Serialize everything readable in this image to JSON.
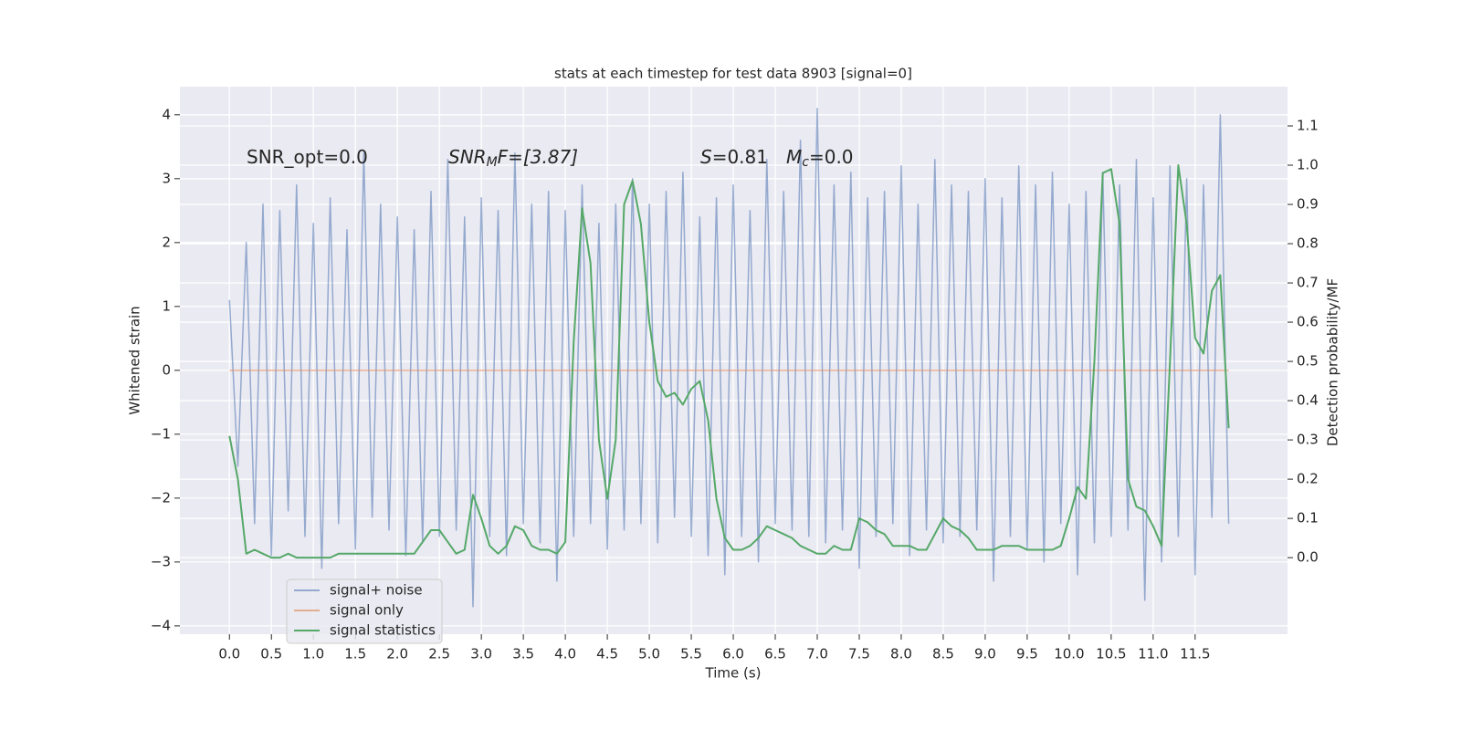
{
  "chart_data": {
    "type": "line",
    "title": "stats at each timestep for test data 8903 [signal=0]",
    "xlabel": "Time (s)",
    "ylabel": "Whitened strain",
    "y2label": "Detection probability/MF",
    "annotations": [
      [
        "SNR_opt=0.0"
      ],
      [
        "SNR",
        "M",
        "F=[3.87]"
      ],
      [
        "S",
        "=0.81",
        "M",
        "c",
        "=0.0"
      ]
    ],
    "grid": true,
    "legend": "lower left",
    "xlim": [
      -0.59,
      12.6
    ],
    "ylim": [
      -4.13,
      4.44
    ],
    "y2lim": [
      -0.195,
      1.2
    ],
    "xticks": [
      {
        "value": 0,
        "label": "0.0"
      },
      {
        "value": 0.5,
        "label": "0.5"
      },
      {
        "value": 1,
        "label": "1.0"
      },
      {
        "value": 1.5,
        "label": "1.5"
      },
      {
        "value": 2,
        "label": "2.0"
      },
      {
        "value": 2.5,
        "label": "2.5"
      },
      {
        "value": 3,
        "label": "3.0"
      },
      {
        "value": 3.5,
        "label": "3.5"
      },
      {
        "value": 4,
        "label": "4.0"
      },
      {
        "value": 4.5,
        "label": "4.5"
      },
      {
        "value": 5,
        "label": "5.0"
      },
      {
        "value": 5.5,
        "label": "5.5"
      },
      {
        "value": 6,
        "label": "6.0"
      },
      {
        "value": 6.5,
        "label": "6.5"
      },
      {
        "value": 7,
        "label": "7.0"
      },
      {
        "value": 7.5,
        "label": "7.5"
      },
      {
        "value": 8,
        "label": "8.0"
      },
      {
        "value": 8.5,
        "label": "8.5"
      },
      {
        "value": 9,
        "label": "9.0"
      },
      {
        "value": 9.5,
        "label": "9.5"
      },
      {
        "value": 10,
        "label": "10.0"
      },
      {
        "value": 10.5,
        "label": "10.5"
      },
      {
        "value": 11,
        "label": "11.0"
      },
      {
        "value": 11.5,
        "label": "11.5"
      }
    ],
    "yticks": [
      {
        "value": -4,
        "label": "−4"
      },
      {
        "value": -3,
        "label": "−3"
      },
      {
        "value": -2,
        "label": "−2"
      },
      {
        "value": -1,
        "label": "−1"
      },
      0,
      1,
      2,
      3,
      4
    ],
    "y2ticks": [
      {
        "value": 0,
        "label": "0.0"
      },
      {
        "value": 0.1,
        "label": "0.1"
      },
      {
        "value": 0.2,
        "label": "0.2"
      },
      {
        "value": 0.3,
        "label": "0.3"
      },
      {
        "value": 0.4,
        "label": "0.4"
      },
      {
        "value": 0.5,
        "label": "0.5"
      },
      {
        "value": 0.6,
        "label": "0.6"
      },
      {
        "value": 0.7,
        "label": "0.7"
      },
      {
        "value": 0.8,
        "label": "0.8"
      },
      {
        "value": 0.9,
        "label": "0.9"
      },
      {
        "value": 1,
        "label": "1.0"
      },
      {
        "value": 1.1,
        "label": "1.1"
      }
    ],
    "x": [
      0.0,
      0.1,
      0.2,
      0.3,
      0.4,
      0.5,
      0.6,
      0.7,
      0.8,
      0.9,
      1.0,
      1.1,
      1.2,
      1.3,
      1.4,
      1.5,
      1.6,
      1.7,
      1.8,
      1.9,
      2.0,
      2.1,
      2.2,
      2.3,
      2.4,
      2.5,
      2.6,
      2.7,
      2.8,
      2.9,
      3.0,
      3.1,
      3.2,
      3.3,
      3.4,
      3.5,
      3.6,
      3.7,
      3.8,
      3.9,
      4.0,
      4.1,
      4.2,
      4.3,
      4.4,
      4.5,
      4.6,
      4.7,
      4.8,
      4.9,
      5.0,
      5.1,
      5.2,
      5.3,
      5.4,
      5.5,
      5.6,
      5.7,
      5.8,
      5.9,
      6.0,
      6.1,
      6.2,
      6.3,
      6.4,
      6.5,
      6.6,
      6.7,
      6.8,
      6.9,
      7.0,
      7.1,
      7.2,
      7.3,
      7.4,
      7.5,
      7.6,
      7.7,
      7.8,
      7.9,
      8.0,
      8.1,
      8.2,
      8.3,
      8.4,
      8.5,
      8.6,
      8.7,
      8.8,
      8.9,
      9.0,
      9.1,
      9.2,
      9.3,
      9.4,
      9.5,
      9.6,
      9.7,
      9.8,
      9.9,
      10.0,
      10.1,
      10.2,
      10.3,
      10.4,
      10.5,
      10.6,
      10.7,
      10.8,
      10.9,
      11.0,
      11.1,
      11.2,
      11.3,
      11.4,
      11.5,
      11.6,
      11.7,
      11.8,
      11.9
    ],
    "series": [
      {
        "name": "signal+ noise",
        "color": "#4c72b0",
        "values": [
          1.1,
          -1.5,
          2.0,
          -2.4,
          2.6,
          -2.9,
          2.5,
          -2.2,
          2.9,
          -2.6,
          2.3,
          -3.1,
          2.7,
          -2.4,
          2.2,
          -2.8,
          3.4,
          -2.3,
          2.6,
          -2.5,
          2.4,
          -2.9,
          2.2,
          -2.7,
          2.8,
          -2.6,
          3.3,
          -2.5,
          2.4,
          -3.7,
          2.7,
          -2.6,
          2.5,
          -2.9,
          3.4,
          -2.4,
          2.6,
          -2.7,
          2.8,
          -3.3,
          2.5,
          -2.6,
          2.9,
          -2.4,
          2.3,
          -2.8,
          2.6,
          -2.5,
          3.0,
          -2.4,
          2.6,
          -2.7,
          2.8,
          -2.3,
          3.1,
          -2.6,
          2.4,
          -2.9,
          2.7,
          -3.2,
          2.9,
          -2.6,
          2.5,
          -3.0,
          3.3,
          -2.4,
          2.8,
          -2.5,
          3.6,
          -2.6,
          4.1,
          -2.7,
          2.9,
          -2.5,
          3.1,
          -3.1,
          2.7,
          -2.6,
          2.8,
          -2.4,
          3.2,
          -2.9,
          2.6,
          -2.5,
          3.3,
          -2.7,
          2.9,
          -2.6,
          2.8,
          -2.5,
          3.0,
          -3.3,
          2.7,
          -2.6,
          3.2,
          -2.8,
          2.9,
          -3.0,
          3.1,
          -2.4,
          2.6,
          -3.2,
          2.8,
          -2.7,
          3.1,
          -2.6,
          2.9,
          -2.5,
          3.3,
          -3.6,
          2.7,
          -3.0,
          3.2,
          -2.6,
          3.0,
          -3.2,
          2.9,
          -2.3,
          4.0,
          -2.4
        ]
      },
      {
        "name": "signal only",
        "color": "#dd8452",
        "values": [
          0,
          0,
          0,
          0,
          0,
          0,
          0,
          0,
          0,
          0,
          0,
          0,
          0,
          0,
          0,
          0,
          0,
          0,
          0,
          0,
          0,
          0,
          0,
          0,
          0,
          0,
          0,
          0,
          0,
          0,
          0,
          0,
          0,
          0,
          0,
          0,
          0,
          0,
          0,
          0,
          0,
          0,
          0,
          0,
          0,
          0,
          0,
          0,
          0,
          0,
          0,
          0,
          0,
          0,
          0,
          0,
          0,
          0,
          0,
          0,
          0,
          0,
          0,
          0,
          0,
          0,
          0,
          0,
          0,
          0,
          0,
          0,
          0,
          0,
          0,
          0,
          0,
          0,
          0,
          0,
          0,
          0,
          0,
          0,
          0,
          0,
          0,
          0,
          0,
          0,
          0,
          0,
          0,
          0,
          0,
          0,
          0,
          0,
          0,
          0,
          0,
          0,
          0,
          0,
          0,
          0,
          0,
          0,
          0,
          0,
          0,
          0,
          0,
          0,
          0,
          0,
          0,
          0,
          0,
          0
        ]
      },
      {
        "name": "signal statistics",
        "color": "#55a868",
        "axis": "y2",
        "values": [
          0.31,
          0.2,
          0.01,
          0.02,
          0.01,
          0.0,
          0.0,
          0.01,
          0.0,
          0.0,
          0.0,
          0.0,
          0.0,
          0.01,
          0.01,
          0.01,
          0.01,
          0.01,
          0.01,
          0.01,
          0.01,
          0.01,
          0.01,
          0.04,
          0.07,
          0.07,
          0.04,
          0.01,
          0.02,
          0.16,
          0.1,
          0.03,
          0.01,
          0.03,
          0.08,
          0.07,
          0.03,
          0.02,
          0.02,
          0.01,
          0.04,
          0.55,
          0.89,
          0.75,
          0.3,
          0.15,
          0.3,
          0.9,
          0.96,
          0.85,
          0.6,
          0.45,
          0.41,
          0.42,
          0.39,
          0.43,
          0.45,
          0.35,
          0.15,
          0.05,
          0.02,
          0.02,
          0.03,
          0.05,
          0.08,
          0.07,
          0.06,
          0.05,
          0.03,
          0.02,
          0.01,
          0.01,
          0.03,
          0.02,
          0.02,
          0.1,
          0.09,
          0.07,
          0.06,
          0.03,
          0.03,
          0.03,
          0.02,
          0.02,
          0.06,
          0.1,
          0.08,
          0.07,
          0.05,
          0.02,
          0.02,
          0.02,
          0.03,
          0.03,
          0.03,
          0.02,
          0.02,
          0.02,
          0.02,
          0.03,
          0.1,
          0.18,
          0.15,
          0.5,
          0.98,
          0.99,
          0.85,
          0.2,
          0.13,
          0.12,
          0.08,
          0.03,
          0.5,
          1.0,
          0.85,
          0.56,
          0.52,
          0.68,
          0.72,
          0.33
        ]
      }
    ]
  }
}
